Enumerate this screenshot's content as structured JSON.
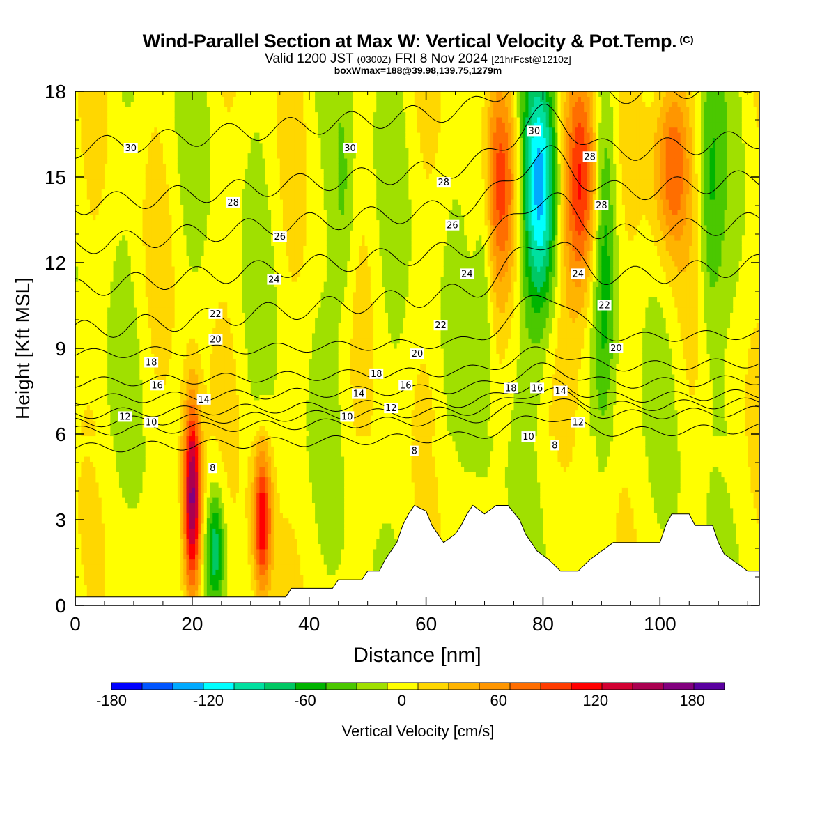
{
  "title": {
    "main": "Wind-Parallel Section at Max W: Vertical Velocity & Pot.Temp.",
    "copyright": "(C)",
    "valid_prefix": "Valid 1200 JST",
    "valid_utc": "(0300Z)",
    "valid_date": "FRI 8 Nov 2024",
    "forecast_info": "[21hrFcst@1210z]",
    "box_info": "boxWmax=188@39.98,139.75,1279m"
  },
  "chart_data": {
    "type": "heatmap",
    "xlabel": "Distance [nm]",
    "ylabel": "Height [Kft MSL]",
    "xlim": [
      0,
      117
    ],
    "ylim": [
      0,
      18
    ],
    "x_ticks": [
      0,
      20,
      40,
      60,
      80,
      100
    ],
    "y_ticks": [
      0,
      3,
      6,
      9,
      12,
      15,
      18
    ],
    "grid": false,
    "colorbar": {
      "label": "Vertical Velocity [cm/s]",
      "min": -180,
      "max": 200,
      "step": 20,
      "tick_labels": [
        "-180",
        "-120",
        "-60",
        "0",
        "60",
        "120",
        "180"
      ],
      "tick_values": [
        -180,
        -120,
        -60,
        0,
        60,
        120,
        180
      ],
      "colors": [
        "#0000ff",
        "#0055ff",
        "#00aaff",
        "#00ffff",
        "#00e0a0",
        "#00c864",
        "#00b400",
        "#4bc800",
        "#a0e000",
        "#ffff00",
        "#ffd700",
        "#ffb400",
        "#ff9600",
        "#ff6e00",
        "#ff3c00",
        "#ff0000",
        "#d20032",
        "#aa0050",
        "#82007e",
        "#5a00a0"
      ]
    },
    "features": [
      {
        "type": "updraft",
        "x_center": 20,
        "y_range": [
          1,
          6.5
        ],
        "peak": 190
      },
      {
        "type": "downdraft",
        "x_center": 24,
        "y_range": [
          0.5,
          3.5
        ],
        "peak": -80
      },
      {
        "type": "updraft",
        "x_center": 32,
        "y_range": [
          1,
          5
        ],
        "peak": 130
      },
      {
        "type": "downdraft",
        "x_center": 79.5,
        "y_range": [
          11,
          18
        ],
        "peak": -130
      },
      {
        "type": "updraft",
        "x_center": 86.5,
        "y_range": [
          11.5,
          18
        ],
        "peak": 130
      },
      {
        "type": "updraft",
        "x_center": 73,
        "y_range": [
          12,
          18
        ],
        "peak": 90
      },
      {
        "type": "updraft",
        "x_center": 102,
        "y_range": [
          13,
          18
        ],
        "peak": 90
      }
    ],
    "terrain": [
      [
        0,
        0.3
      ],
      [
        8,
        0.3
      ],
      [
        36,
        0.3
      ],
      [
        37,
        0.6
      ],
      [
        44,
        0.6
      ],
      [
        45,
        0.9
      ],
      [
        49,
        0.9
      ],
      [
        50,
        1.2
      ],
      [
        52,
        1.2
      ],
      [
        53,
        1.6
      ],
      [
        55,
        2.2
      ],
      [
        56,
        2.8
      ],
      [
        57,
        3.2
      ],
      [
        58,
        3.5
      ],
      [
        60,
        3.3
      ],
      [
        61,
        2.8
      ],
      [
        63,
        2.2
      ],
      [
        65,
        2.5
      ],
      [
        66,
        2.8
      ],
      [
        67,
        3.2
      ],
      [
        68,
        3.5
      ],
      [
        70,
        3.2
      ],
      [
        72,
        3.5
      ],
      [
        74,
        3.5
      ],
      [
        76,
        3.0
      ],
      [
        77,
        2.5
      ],
      [
        79,
        1.9
      ],
      [
        81,
        1.6
      ],
      [
        83,
        1.2
      ],
      [
        86,
        1.2
      ],
      [
        88,
        1.6
      ],
      [
        90,
        1.9
      ],
      [
        92,
        2.2
      ],
      [
        95,
        2.2
      ],
      [
        100,
        2.2
      ],
      [
        101,
        2.8
      ],
      [
        102,
        3.2
      ],
      [
        105,
        3.2
      ],
      [
        106,
        2.8
      ],
      [
        109,
        2.8
      ],
      [
        110,
        2.2
      ],
      [
        111,
        1.8
      ],
      [
        113,
        1.5
      ],
      [
        115,
        1.2
      ],
      [
        117,
        1.2
      ]
    ],
    "isentropes": [
      {
        "label": "8",
        "y_left": 5.5
      },
      {
        "label": "10",
        "y_left": 6.1
      },
      {
        "label": "12",
        "y_left": 6.4
      },
      {
        "label": "14",
        "y_left": 6.7
      },
      {
        "label": "16",
        "y_left": 7.2
      },
      {
        "label": "18",
        "y_left": 7.8
      },
      {
        "label": "20",
        "y_left": 8.8
      },
      {
        "label": "22",
        "y_left": 9.6
      },
      {
        "label": "24",
        "y_left": 11.1
      },
      {
        "label": "26",
        "y_left": 12.6
      },
      {
        "label": "28",
        "y_left": 14.0
      },
      {
        "label": "30",
        "y_left": 16.0
      }
    ],
    "contour_labels": [
      {
        "text": "30",
        "x": 9.5,
        "y": 16.0
      },
      {
        "text": "30",
        "x": 47,
        "y": 16.0
      },
      {
        "text": "30",
        "x": 78.5,
        "y": 16.6
      },
      {
        "text": "28",
        "x": 27,
        "y": 14.1
      },
      {
        "text": "28",
        "x": 63,
        "y": 14.8
      },
      {
        "text": "28",
        "x": 88,
        "y": 15.7
      },
      {
        "text": "28",
        "x": 90,
        "y": 14.0
      },
      {
        "text": "26",
        "x": 35,
        "y": 12.9
      },
      {
        "text": "26",
        "x": 64.5,
        "y": 13.3
      },
      {
        "text": "24",
        "x": 34,
        "y": 11.4
      },
      {
        "text": "24",
        "x": 67,
        "y": 11.6
      },
      {
        "text": "24",
        "x": 86,
        "y": 11.6
      },
      {
        "text": "22",
        "x": 24,
        "y": 10.2
      },
      {
        "text": "22",
        "x": 62.5,
        "y": 9.8
      },
      {
        "text": "22",
        "x": 90.5,
        "y": 10.5
      },
      {
        "text": "20",
        "x": 24,
        "y": 9.3
      },
      {
        "text": "20",
        "x": 58.5,
        "y": 8.8
      },
      {
        "text": "20",
        "x": 92.5,
        "y": 9.0
      },
      {
        "text": "18",
        "x": 13,
        "y": 8.5
      },
      {
        "text": "18",
        "x": 51.5,
        "y": 8.1
      },
      {
        "text": "18",
        "x": 74.5,
        "y": 7.6
      },
      {
        "text": "16",
        "x": 14,
        "y": 7.7
      },
      {
        "text": "16",
        "x": 56.5,
        "y": 7.7
      },
      {
        "text": "16",
        "x": 79,
        "y": 7.6
      },
      {
        "text": "14",
        "x": 22,
        "y": 7.2
      },
      {
        "text": "14",
        "x": 48.5,
        "y": 7.4
      },
      {
        "text": "14",
        "x": 83,
        "y": 7.5
      },
      {
        "text": "12",
        "x": 8.5,
        "y": 6.6
      },
      {
        "text": "12",
        "x": 54,
        "y": 6.9
      },
      {
        "text": "12",
        "x": 86,
        "y": 6.4
      },
      {
        "text": "10",
        "x": 13,
        "y": 6.4
      },
      {
        "text": "10",
        "x": 46.5,
        "y": 6.6
      },
      {
        "text": "10",
        "x": 77.5,
        "y": 5.9
      },
      {
        "text": "8",
        "x": 23.5,
        "y": 4.8
      },
      {
        "text": "8",
        "x": 58,
        "y": 5.4
      },
      {
        "text": "8",
        "x": 82,
        "y": 5.6
      }
    ]
  }
}
